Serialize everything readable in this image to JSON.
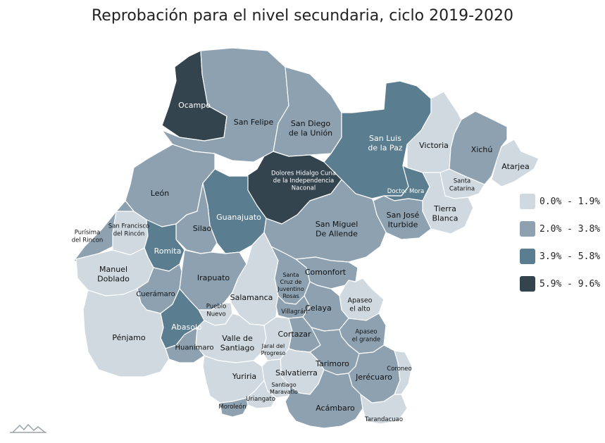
{
  "title": "Reprobación para el nivel secundaria, ciclo 2019-2020",
  "colors": {
    "c1": "#cfd9df",
    "c2": "#8da1b1",
    "c3": "#5b7d90",
    "c4": "#34444f"
  },
  "legend": [
    {
      "label": "0.0% - 1.9%",
      "color": "#cfd9df"
    },
    {
      "label": "2.0% - 3.8%",
      "color": "#8da1b1"
    },
    {
      "label": "3.9% - 5.8%",
      "color": "#5b7d90"
    },
    {
      "label": "5.9% - 9.6%",
      "color": "#34444f"
    }
  ],
  "municipalities": [
    {
      "name": "Ocampo",
      "lines": [
        "Ocampo"
      ],
      "class": 4
    },
    {
      "name": "San Felipe",
      "lines": [
        "San Felipe"
      ],
      "class": 2
    },
    {
      "name": "San Diego de la Unión",
      "lines": [
        "San Diego",
        "de la Unión"
      ],
      "class": 2
    },
    {
      "name": "San Luis de la Paz",
      "lines": [
        "San Luis",
        "de la Paz"
      ],
      "class": 3
    },
    {
      "name": "Victoria",
      "lines": [
        "Victoria"
      ],
      "class": 1
    },
    {
      "name": "Xichú",
      "lines": [
        "Xichú"
      ],
      "class": 2
    },
    {
      "name": "Atarjea",
      "lines": [
        "Atarjea"
      ],
      "class": 1
    },
    {
      "name": "Santa Catarina",
      "lines": [
        "Santa",
        "Catarina"
      ],
      "class": 1
    },
    {
      "name": "Tierra Blanca",
      "lines": [
        "Tierra",
        "Blanca"
      ],
      "class": 1
    },
    {
      "name": "Doctor Mora",
      "lines": [
        "Doctor Mora"
      ],
      "class": 3
    },
    {
      "name": "San José Iturbide",
      "lines": [
        "San José",
        "Iturbide"
      ],
      "class": 2
    },
    {
      "name": "Dolores Hidalgo Cuna de la Independencia Naconal",
      "lines": [
        "Dolores Hidalgo Cuna",
        "de la Independencia",
        "Naconal"
      ],
      "class": 4
    },
    {
      "name": "León",
      "lines": [
        "León"
      ],
      "class": 2
    },
    {
      "name": "Guanajuato",
      "lines": [
        "Guanajuato"
      ],
      "class": 3
    },
    {
      "name": "Silao",
      "lines": [
        "Silao"
      ],
      "class": 2
    },
    {
      "name": "San Miguel De Allende",
      "lines": [
        "San Miguel",
        "De Allende"
      ],
      "class": 2
    },
    {
      "name": "Purísima del Rincon",
      "lines": [
        "Purísima",
        "del Rincon"
      ],
      "class": 2
    },
    {
      "name": "San Francisco del Rincón",
      "lines": [
        "San Francisco",
        "del Rincón"
      ],
      "class": 1
    },
    {
      "name": "Romita",
      "lines": [
        "Romita"
      ],
      "class": 3
    },
    {
      "name": "Manuel Doblado",
      "lines": [
        "Manuel",
        "Doblado"
      ],
      "class": 1
    },
    {
      "name": "Irapuato",
      "lines": [
        "Irapuato"
      ],
      "class": 2
    },
    {
      "name": "Cuerámaro",
      "lines": [
        "Cuerámaro"
      ],
      "class": 2
    },
    {
      "name": "Salamanca",
      "lines": [
        "Salamanca"
      ],
      "class": 1
    },
    {
      "name": "Santa Cruz de Juventino Rosas",
      "lines": [
        "Santa",
        "Cruz de",
        "Juventino",
        "Rosas"
      ],
      "class": 2
    },
    {
      "name": "Comonfort",
      "lines": [
        "Comonfort"
      ],
      "class": 2
    },
    {
      "name": "Apaseo el alto",
      "lines": [
        "Apaseo",
        "el alto"
      ],
      "class": 1
    },
    {
      "name": "Pueblo Nuevo",
      "lines": [
        "Pueblo",
        "Nuevo"
      ],
      "class": 1
    },
    {
      "name": "Villagrán",
      "lines": [
        "Villagrán"
      ],
      "class": 2
    },
    {
      "name": "Celaya",
      "lines": [
        "Celaya"
      ],
      "class": 2
    },
    {
      "name": "Abasolo",
      "lines": [
        "Abasolo"
      ],
      "class": 3
    },
    {
      "name": "Pénjamo",
      "lines": [
        "Pénjamo"
      ],
      "class": 1
    },
    {
      "name": "Valle de Santiago",
      "lines": [
        "Valle de",
        "Santiago"
      ],
      "class": 1
    },
    {
      "name": "Huanímaro",
      "lines": [
        "Huanímaro"
      ],
      "class": 2
    },
    {
      "name": "Jaral del Progreso",
      "lines": [
        "Jaral del",
        "Progreso"
      ],
      "class": 1
    },
    {
      "name": "Cortazar",
      "lines": [
        "Cortazar"
      ],
      "class": 2
    },
    {
      "name": "Apaseo el grande",
      "lines": [
        "Apaseo",
        "el grande"
      ],
      "class": 2
    },
    {
      "name": "Tarimoro",
      "lines": [
        "Tarimoro"
      ],
      "class": 2
    },
    {
      "name": "Yuriria",
      "lines": [
        "Yuriria"
      ],
      "class": 1
    },
    {
      "name": "Salvatierra",
      "lines": [
        "Salvatierra"
      ],
      "class": 1
    },
    {
      "name": "Jerécuaro",
      "lines": [
        "Jerécuaro"
      ],
      "class": 2
    },
    {
      "name": "Coroneo",
      "lines": [
        "Coroneo"
      ],
      "class": 1
    },
    {
      "name": "Santiago Maravatío",
      "lines": [
        "Santiago",
        "Maravatío"
      ],
      "class": 1
    },
    {
      "name": "Uriangato",
      "lines": [
        "Uriangato"
      ],
      "class": 1
    },
    {
      "name": "Moroleón",
      "lines": [
        "Moroleón"
      ],
      "class": 2
    },
    {
      "name": "Acámbaro",
      "lines": [
        "Acámbaro"
      ],
      "class": 2
    },
    {
      "name": "Tarandacuao",
      "lines": [
        "Tarandacuao"
      ],
      "class": 1
    }
  ]
}
